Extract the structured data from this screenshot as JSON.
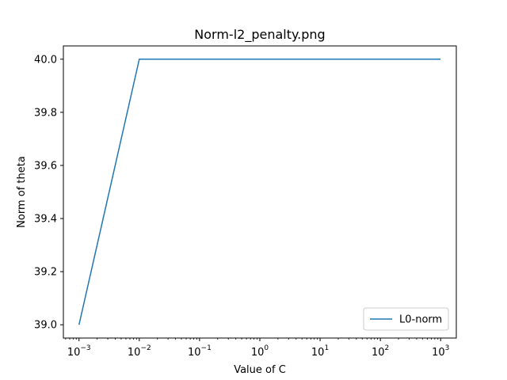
{
  "chart_data": {
    "type": "line",
    "title": "Norm-l2_penalty.png",
    "xlabel": "Value of C",
    "ylabel": "Norm of theta",
    "xscale": "log",
    "xlim": [
      0.00055,
      1820
    ],
    "ylim": [
      38.95,
      40.05
    ],
    "xticks": [
      {
        "value": 0.001,
        "base": "10",
        "exp": "−3"
      },
      {
        "value": 0.01,
        "base": "10",
        "exp": "−2"
      },
      {
        "value": 0.1,
        "base": "10",
        "exp": "−1"
      },
      {
        "value": 1,
        "base": "10",
        "exp": "0"
      },
      {
        "value": 10,
        "base": "10",
        "exp": "1"
      },
      {
        "value": 100,
        "base": "10",
        "exp": "2"
      },
      {
        "value": 1000,
        "base": "10",
        "exp": "3"
      }
    ],
    "yticks": [
      {
        "value": 39.0,
        "label": "39.0"
      },
      {
        "value": 39.2,
        "label": "39.2"
      },
      {
        "value": 39.4,
        "label": "39.4"
      },
      {
        "value": 39.6,
        "label": "39.6"
      },
      {
        "value": 39.8,
        "label": "39.8"
      },
      {
        "value": 40.0,
        "label": "40.0"
      }
    ],
    "legend_position": "bottom-right",
    "series": [
      {
        "name": "L0-norm",
        "color": "#1f77b4",
        "x": [
          0.001,
          0.01,
          0.1,
          1,
          10,
          100,
          1000
        ],
        "y": [
          39.0,
          40.0,
          40.0,
          40.0,
          40.0,
          40.0,
          40.0
        ]
      }
    ]
  }
}
